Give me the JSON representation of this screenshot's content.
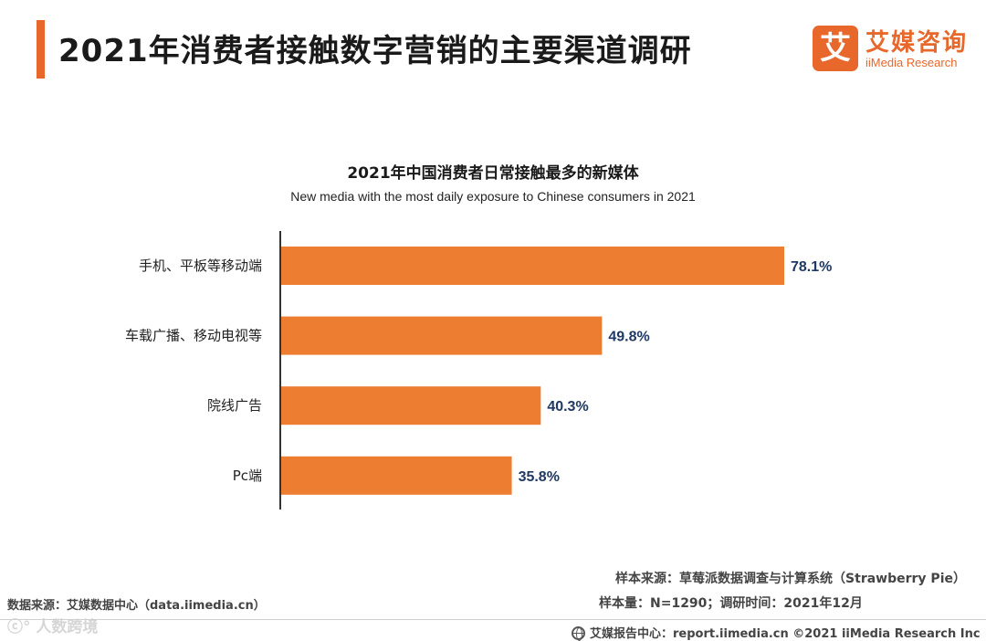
{
  "header": {
    "title": "2021年消费者接触数字营销的主要渠道调研",
    "logo_mark": "艾",
    "logo_cn": "艾媒咨询",
    "logo_en": "iiMedia Research"
  },
  "colors": {
    "accent": "#e8672b",
    "bar": "#ed7d31",
    "value_label": "#1f3864"
  },
  "chart_data": {
    "type": "bar",
    "orientation": "horizontal",
    "title": "2021年中国消费者日常接触最多的新媒体",
    "subtitle": "New media with the most daily exposure to Chinese consumers in 2021",
    "categories": [
      "手机、平板等移动端",
      "车载广播、移动电视等",
      "院线广告",
      "Pc端"
    ],
    "values": [
      78.1,
      49.8,
      40.3,
      35.8
    ],
    "value_labels": [
      "78.1%",
      "49.8%",
      "40.3%",
      "35.8%"
    ],
    "xlim": [
      0,
      100
    ],
    "grid": false,
    "legend": "none"
  },
  "sources": {
    "left": "数据来源：艾媒数据中心（data.iimedia.cn）",
    "right_line1": "样本来源：草莓派数据调查与计算系统（Strawberry Pie）",
    "right_line2": "样本量：N=1290；调研时间：2021年12月",
    "footer": "艾媒报告中心：report.iimedia.cn ©2021  iiMedia Research  Inc",
    "watermark": "ⓒ° 人数跨境"
  }
}
